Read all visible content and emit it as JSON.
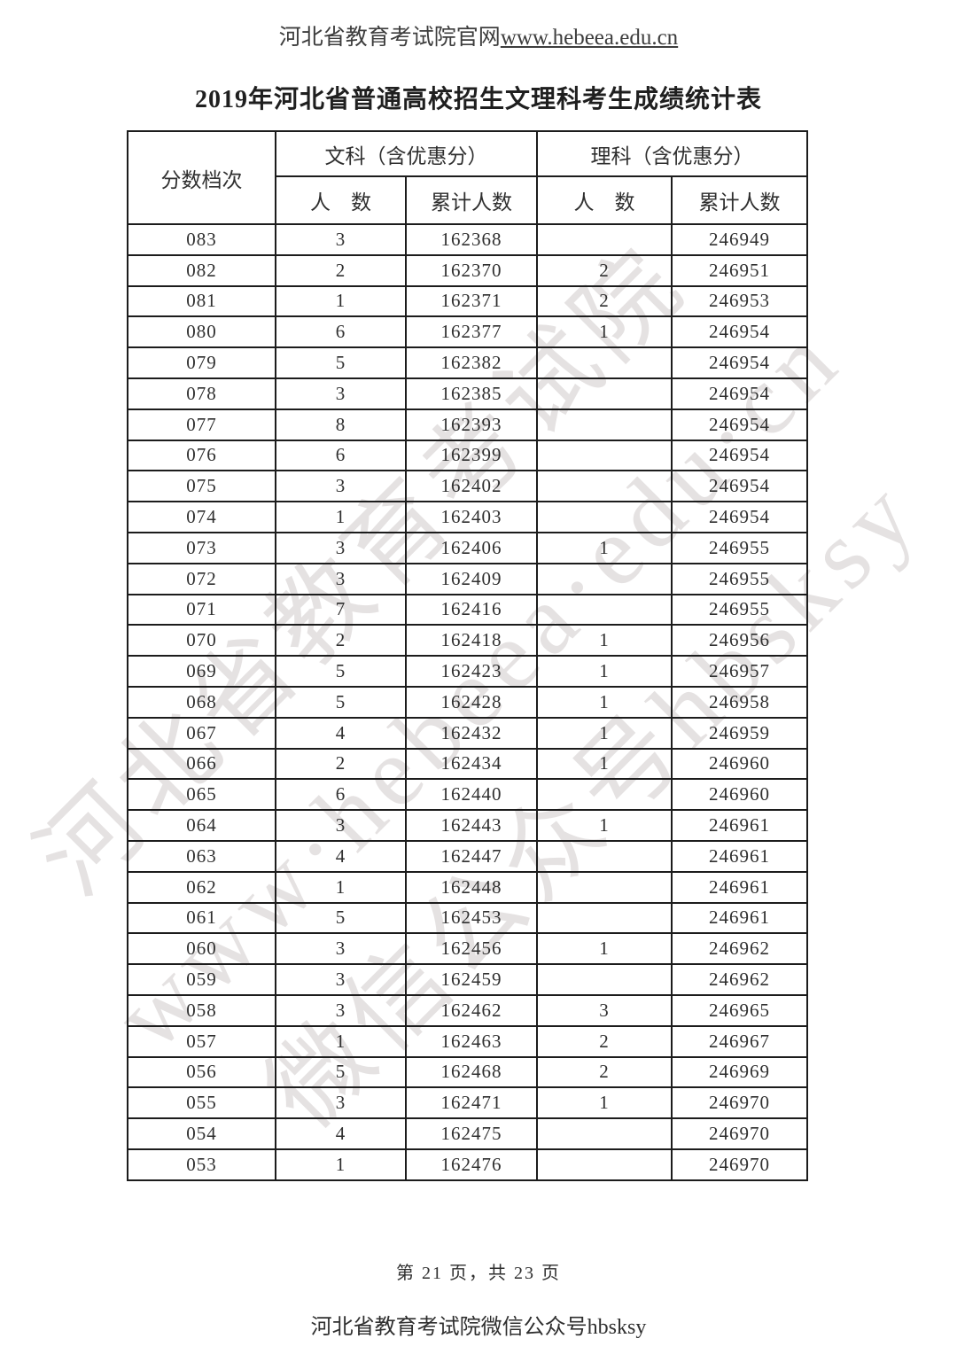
{
  "page": {
    "header_prefix": "河北省教育考试院官网",
    "header_url": "www.hebeea.edu.cn",
    "title": "2019年河北省普通高校招生文理科考生成绩统计表",
    "footer_page": "第 21 页，共 23 页",
    "footer_wechat": "河北省教育考试院微信公众号hbsksy"
  },
  "watermark": {
    "lines": [
      "河北省教育考试院",
      "www·hebeea·edu·cn",
      "微信公众号hbsksy"
    ]
  },
  "table": {
    "col_header_score": "分数档次",
    "group_wen": "文科（含优惠分）",
    "group_li": "理科（含优惠分）",
    "sub_count": "人　数",
    "sub_cum": "累计人数",
    "rows": [
      [
        "083",
        "3",
        "162368",
        "",
        "246949"
      ],
      [
        "082",
        "2",
        "162370",
        "2",
        "246951"
      ],
      [
        "081",
        "1",
        "162371",
        "2",
        "246953"
      ],
      [
        "080",
        "6",
        "162377",
        "1",
        "246954"
      ],
      [
        "079",
        "5",
        "162382",
        "",
        "246954"
      ],
      [
        "078",
        "3",
        "162385",
        "",
        "246954"
      ],
      [
        "077",
        "8",
        "162393",
        "",
        "246954"
      ],
      [
        "076",
        "6",
        "162399",
        "",
        "246954"
      ],
      [
        "075",
        "3",
        "162402",
        "",
        "246954"
      ],
      [
        "074",
        "1",
        "162403",
        "",
        "246954"
      ],
      [
        "073",
        "3",
        "162406",
        "1",
        "246955"
      ],
      [
        "072",
        "3",
        "162409",
        "",
        "246955"
      ],
      [
        "071",
        "7",
        "162416",
        "",
        "246955"
      ],
      [
        "070",
        "2",
        "162418",
        "1",
        "246956"
      ],
      [
        "069",
        "5",
        "162423",
        "1",
        "246957"
      ],
      [
        "068",
        "5",
        "162428",
        "1",
        "246958"
      ],
      [
        "067",
        "4",
        "162432",
        "1",
        "246959"
      ],
      [
        "066",
        "2",
        "162434",
        "1",
        "246960"
      ],
      [
        "065",
        "6",
        "162440",
        "",
        "246960"
      ],
      [
        "064",
        "3",
        "162443",
        "1",
        "246961"
      ],
      [
        "063",
        "4",
        "162447",
        "",
        "246961"
      ],
      [
        "062",
        "1",
        "162448",
        "",
        "246961"
      ],
      [
        "061",
        "5",
        "162453",
        "",
        "246961"
      ],
      [
        "060",
        "3",
        "162456",
        "1",
        "246962"
      ],
      [
        "059",
        "3",
        "162459",
        "",
        "246962"
      ],
      [
        "058",
        "3",
        "162462",
        "3",
        "246965"
      ],
      [
        "057",
        "1",
        "162463",
        "2",
        "246967"
      ],
      [
        "056",
        "5",
        "162468",
        "2",
        "246969"
      ],
      [
        "055",
        "3",
        "162471",
        "1",
        "246970"
      ],
      [
        "054",
        "4",
        "162475",
        "",
        "246970"
      ],
      [
        "053",
        "1",
        "162476",
        "",
        "246970"
      ]
    ]
  }
}
